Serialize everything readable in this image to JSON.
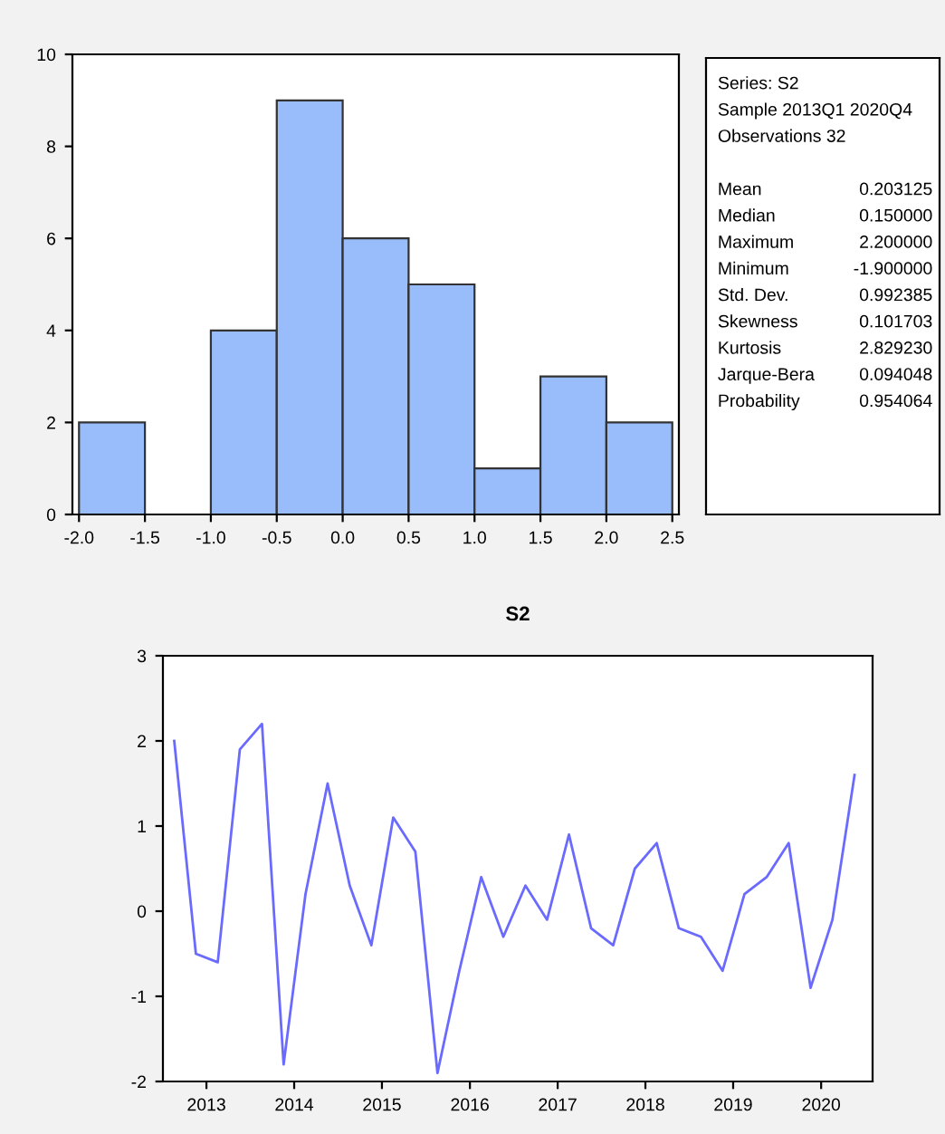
{
  "chart_data": [
    {
      "type": "histogram",
      "bins": [
        -2.0,
        -1.5,
        -1.0,
        -0.5,
        0.0,
        0.5,
        1.0,
        1.5,
        2.0,
        2.5
      ],
      "values": [
        2,
        0,
        4,
        9,
        6,
        5,
        1,
        3,
        2
      ],
      "color": "#99bdfb",
      "xlim": [
        -2.05,
        2.55
      ],
      "xticks": [
        {
          "value": -2.0,
          "label": "-2.0"
        },
        {
          "value": -1.5,
          "label": "-1.5"
        },
        {
          "value": -1.0,
          "label": "-1.0"
        },
        {
          "value": -0.5,
          "label": "-0.5"
        },
        {
          "value": 0.0,
          "label": "0.0"
        },
        {
          "value": 0.5,
          "label": "0.5"
        },
        {
          "value": 1.0,
          "label": "1.0"
        },
        {
          "value": 1.5,
          "label": "1.5"
        },
        {
          "value": 2.0,
          "label": "2.0"
        },
        {
          "value": 2.5,
          "label": "2.5"
        }
      ],
      "ylim": [
        0,
        10
      ],
      "yticks": [
        0,
        2,
        4,
        6,
        8,
        10
      ],
      "grid": false
    },
    {
      "type": "other",
      "annotations": [
        "Series: S2",
        "Sample 2013Q1 2020Q4",
        "Observations 32"
      ],
      "categories": [
        "Mean",
        "Median",
        "Maximum",
        "Minimum",
        "Std. Dev.",
        "Skewness",
        "Kurtosis",
        "Jarque-Bera",
        "Probability"
      ],
      "value_labels": [
        "0.203125",
        "0.150000",
        "2.200000",
        "-1.900000",
        "0.992385",
        "0.101703",
        "2.829230",
        "0.094048",
        "0.954064"
      ]
    },
    {
      "type": "line",
      "title": "S2",
      "color": "#6a6aff",
      "x": [
        "2013-01",
        "2013-04",
        "2013-07",
        "2013-10",
        "2014-01",
        "2014-04",
        "2014-07",
        "2014-10",
        "2015-01",
        "2015-04",
        "2015-07",
        "2015-10",
        "2016-01",
        "2016-04",
        "2016-07",
        "2016-10",
        "2017-01",
        "2017-04",
        "2017-07",
        "2017-10",
        "2018-01",
        "2018-04",
        "2018-07",
        "2018-10",
        "2019-01",
        "2019-04",
        "2019-07",
        "2019-10",
        "2020-01",
        "2020-04",
        "2020-07",
        "2020-10"
      ],
      "values": [
        2.0,
        -0.5,
        -0.6,
        1.9,
        2.2,
        -1.8,
        0.2,
        1.5,
        0.3,
        -0.4,
        1.1,
        0.7,
        -1.9,
        -0.7,
        0.4,
        -0.3,
        0.3,
        -0.1,
        0.9,
        -0.2,
        -0.4,
        0.5,
        0.8,
        -0.2,
        -0.3,
        -0.7,
        0.2,
        0.4,
        0.8,
        -0.9,
        -0.1,
        1.6
      ],
      "xlim": [
        "2012-11-15",
        "2020-12-15"
      ],
      "xticks": [
        {
          "value": "2013-05-15",
          "label": "2013"
        },
        {
          "value": "2014-05-15",
          "label": "2014"
        },
        {
          "value": "2015-05-15",
          "label": "2015"
        },
        {
          "value": "2016-05-15",
          "label": "2016"
        },
        {
          "value": "2017-05-15",
          "label": "2017"
        },
        {
          "value": "2018-05-15",
          "label": "2018"
        },
        {
          "value": "2019-05-15",
          "label": "2019"
        },
        {
          "value": "2020-05-15",
          "label": "2020"
        }
      ],
      "ylim": [
        -2,
        3
      ],
      "yticks": [
        -2,
        -1,
        0,
        1,
        2,
        3
      ],
      "grid": false,
      "marker": "none",
      "line_style": "solid"
    }
  ]
}
